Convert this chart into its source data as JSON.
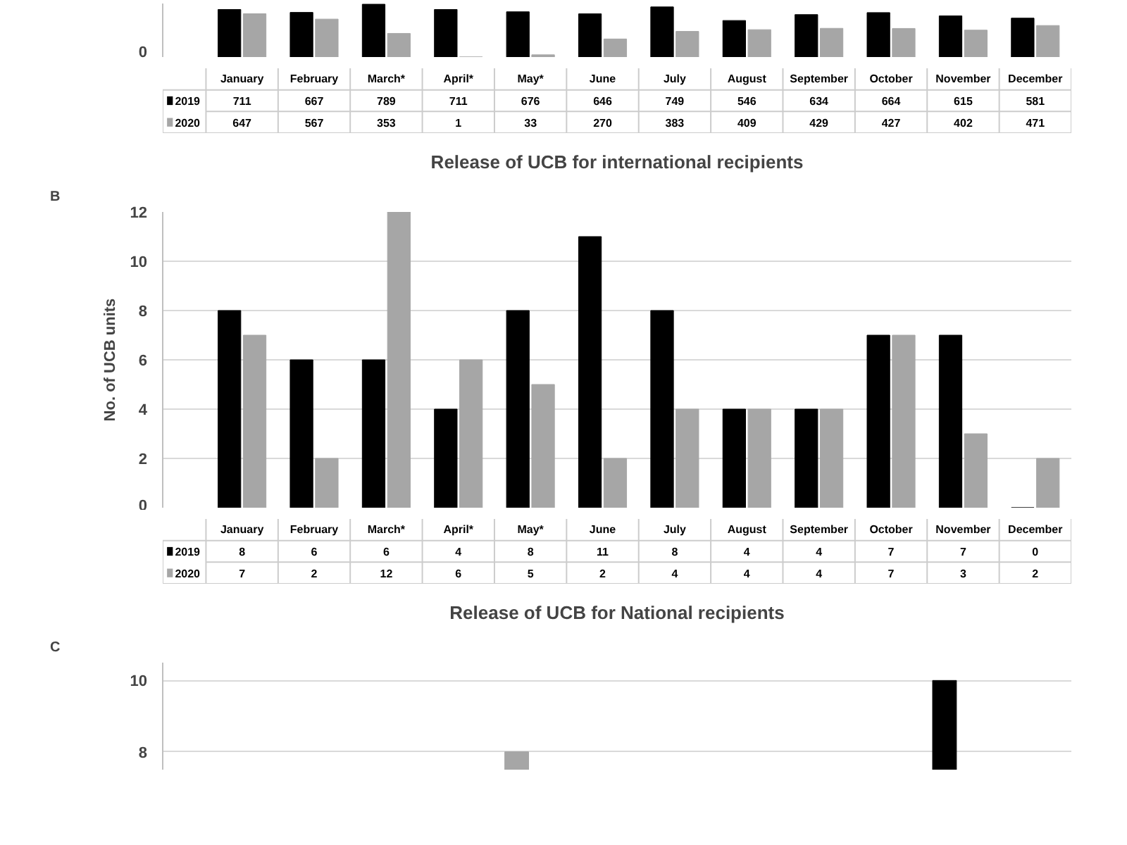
{
  "chart_data": [
    {
      "type": "bar",
      "annotations": [
        "0"
      ],
      "ylim": [
        0,
        800
      ],
      "categories": [
        "January",
        "February",
        "March*",
        "April*",
        "May*",
        "June",
        "July",
        "August",
        "September",
        "October",
        "November",
        "December"
      ],
      "series": [
        {
          "name": "2019",
          "color": "#000000",
          "values": [
            711,
            667,
            789,
            711,
            676,
            646,
            749,
            546,
            634,
            664,
            615,
            581
          ]
        },
        {
          "name": "2020",
          "color": "#a6a6a6",
          "values": [
            647,
            567,
            353,
            1,
            33,
            270,
            383,
            409,
            429,
            427,
            402,
            471
          ]
        }
      ],
      "legend": "bottom",
      "data_labels": true
    },
    {
      "type": "bar",
      "title": "Release of UCB for international recipients",
      "ylabel": "No. of UCB units",
      "annotations": [
        "B"
      ],
      "categories": [
        "January",
        "February",
        "March*",
        "April*",
        "May*",
        "June",
        "July",
        "August",
        "September",
        "October",
        "November",
        "December"
      ],
      "series": [
        {
          "name": "2019",
          "color": "#000000",
          "values": [
            8,
            6,
            6,
            4,
            8,
            11,
            8,
            4,
            4,
            7,
            7,
            0
          ]
        },
        {
          "name": "2020",
          "color": "#a6a6a6",
          "values": [
            7,
            2,
            12,
            6,
            5,
            2,
            4,
            4,
            4,
            7,
            3,
            2
          ]
        }
      ],
      "ylim": [
        0,
        12
      ],
      "yticks": [
        0,
        2,
        4,
        6,
        8,
        10,
        12
      ],
      "grid": "y",
      "legend": "bottom",
      "data_labels": true
    },
    {
      "type": "bar",
      "title": "Release of UCB for National recipients",
      "annotations": [
        "C"
      ],
      "categories": [
        null,
        null,
        null,
        null,
        null,
        null,
        null,
        null,
        null,
        null,
        null,
        null
      ],
      "series": [
        {
          "color": "#000000",
          "values": [
            null,
            null,
            null,
            null,
            null,
            null,
            null,
            null,
            null,
            null,
            10,
            null
          ]
        },
        {
          "color": "#a6a6a6",
          "values": [
            null,
            null,
            null,
            null,
            8,
            null,
            null,
            null,
            null,
            null,
            null,
            null
          ]
        }
      ],
      "ylim": [
        7.5,
        10.5
      ],
      "yticks": [
        8,
        10
      ],
      "grid": "y"
    }
  ]
}
